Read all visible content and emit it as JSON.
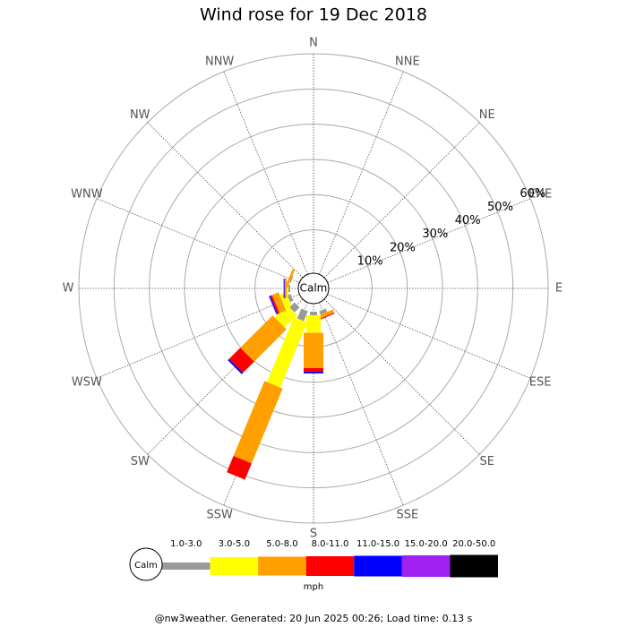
{
  "chart_data": {
    "type": "windrose",
    "title": "Wind rose for 19 Dec 2018",
    "directions": [
      "N",
      "NNE",
      "NE",
      "ENE",
      "E",
      "ESE",
      "SE",
      "SSE",
      "S",
      "SSW",
      "SW",
      "WSW",
      "W",
      "WNW",
      "NW",
      "NNW"
    ],
    "calm_label": "Calm",
    "unit": "mph",
    "footer": "@nw3weather. Generated: 20 Jun 2025 00:26; Load time: 0.13 s",
    "rlim": [
      0,
      60
    ],
    "rticks": [
      {
        "value": 10,
        "label": "10%"
      },
      {
        "value": 20,
        "label": "20%"
      },
      {
        "value": 30,
        "label": "30%"
      },
      {
        "value": 40,
        "label": "40%"
      },
      {
        "value": 50,
        "label": "50%"
      },
      {
        "value": 60,
        "label": "60%"
      }
    ],
    "series": [
      {
        "name": "1.0-3.0",
        "color": "#999999",
        "values": [
          0,
          0,
          0,
          0,
          0,
          0,
          0,
          1,
          1,
          3,
          2,
          1,
          0.5,
          0.3,
          0,
          0
        ]
      },
      {
        "name": "3.0-5.0",
        "color": "#ffff00",
        "values": [
          0,
          0,
          0,
          0,
          0,
          0,
          0,
          0,
          5,
          20,
          5,
          2,
          0.5,
          0,
          0,
          0
        ]
      },
      {
        "name": "5.0-8.0",
        "color": "#ffa000",
        "values": [
          0,
          0,
          0,
          0,
          0,
          0,
          0,
          1,
          10,
          23,
          13,
          2,
          0.5,
          0.7,
          0,
          0
        ]
      },
      {
        "name": "8.0-11.0",
        "color": "#ff0000",
        "values": [
          0,
          0,
          0,
          0,
          0,
          0,
          0,
          0.3,
          1,
          5,
          4.5,
          0.5,
          0,
          0,
          0,
          0
        ]
      },
      {
        "name": "11.0-15.0",
        "color": "#0000ff",
        "values": [
          0,
          0,
          0,
          0,
          0,
          0,
          0,
          0,
          0.5,
          0,
          0.5,
          0.3,
          0.2,
          0,
          0,
          0
        ]
      },
      {
        "name": "15.0-20.0",
        "color": "#a020f0",
        "values": [
          0,
          0,
          0,
          0,
          0,
          0,
          0,
          0,
          0,
          0,
          0,
          0.2,
          0.2,
          0,
          0,
          0
        ]
      },
      {
        "name": "20.0-50.0",
        "color": "#000000",
        "values": [
          0,
          0,
          0,
          0,
          0,
          0,
          0,
          0,
          0,
          0,
          0,
          0,
          0,
          0,
          0,
          0
        ]
      }
    ]
  }
}
